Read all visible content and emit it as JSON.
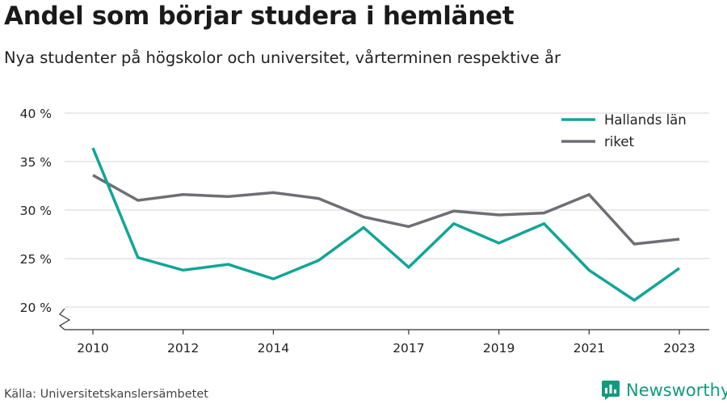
{
  "header": {
    "title": "Andel som börjar studera i hemlänet",
    "subtitle": "Nya studenter på högskolor och universitet, vårterminen respektive år"
  },
  "footer": {
    "source": "Källa: Universitetskanslersämbetet",
    "brand": "Newsworthy"
  },
  "colors": {
    "hallands": "#12a596",
    "riket": "#6f6e75",
    "grid": "#dddddd",
    "axis": "#333333",
    "brand": "#139a7e"
  },
  "chart_data": {
    "type": "line",
    "x": [
      2010,
      2011,
      2012,
      2013,
      2014,
      2015,
      2016,
      2017,
      2018,
      2019,
      2020,
      2021,
      2022,
      2023
    ],
    "xticks": [
      "2010",
      "2012",
      "2014",
      "2017",
      "2019",
      "2021",
      "2023"
    ],
    "yticks": [
      "20 %",
      "25 %",
      "30 %",
      "35 %",
      "40 %"
    ],
    "ylim": [
      20,
      40
    ],
    "axis_break": true,
    "grid": true,
    "legend_position": "top-right",
    "series": [
      {
        "name": "Hallands län",
        "color": "#12a596",
        "values": [
          36.4,
          25.1,
          23.8,
          24.4,
          22.9,
          24.8,
          28.2,
          24.1,
          28.6,
          26.6,
          28.6,
          23.8,
          20.7,
          24.0
        ]
      },
      {
        "name": "riket",
        "color": "#6f6e75",
        "values": [
          33.6,
          31.0,
          31.6,
          31.4,
          31.8,
          31.2,
          29.3,
          28.3,
          29.9,
          29.5,
          29.7,
          31.6,
          26.5,
          27.0
        ]
      }
    ]
  }
}
